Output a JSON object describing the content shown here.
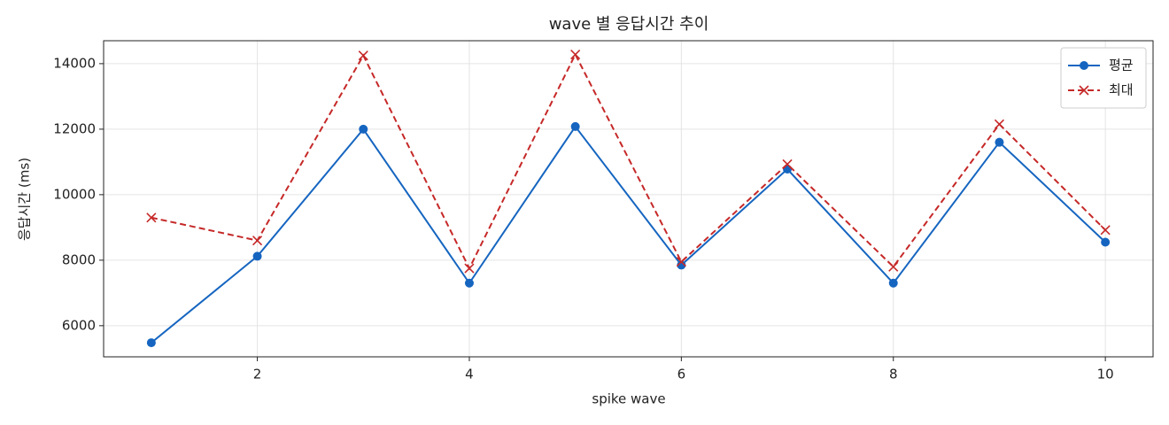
{
  "chart_data": {
    "type": "line",
    "title": "wave 별 응답시간 추이",
    "xlabel": "spike wave",
    "ylabel": "응답시간 (ms)",
    "x": [
      1,
      2,
      3,
      4,
      5,
      6,
      7,
      8,
      9,
      10
    ],
    "series": [
      {
        "name": "평균",
        "color": "#1565c0",
        "linestyle": "solid",
        "marker": "circle",
        "values": [
          5480,
          8120,
          12000,
          7300,
          12080,
          7850,
          10780,
          7300,
          11600,
          8550
        ]
      },
      {
        "name": "최대",
        "color": "#c62828",
        "linestyle": "dashed",
        "marker": "x",
        "values": [
          9300,
          8600,
          14250,
          7750,
          14280,
          7950,
          10930,
          7800,
          12150,
          8920
        ]
      }
    ],
    "xlim": [
      0.55,
      10.45
    ],
    "ylim": [
      5050,
      14700
    ],
    "xticks": [
      2,
      4,
      6,
      8,
      10
    ],
    "yticks": [
      6000,
      8000,
      10000,
      12000,
      14000
    ],
    "grid": true,
    "legend": "upper right"
  }
}
